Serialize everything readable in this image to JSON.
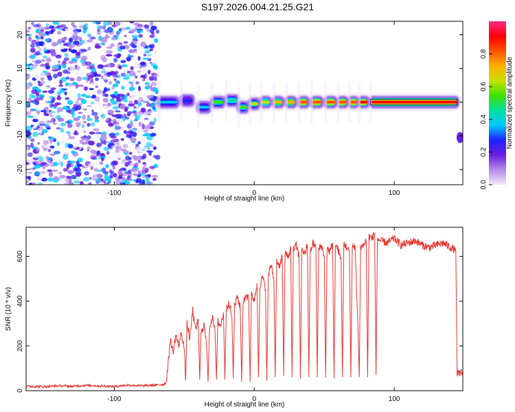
{
  "title": "S197.2026.004.21.25.G21",
  "chart_data": [
    {
      "type": "heatmap",
      "name": "spectrogram",
      "xlabel": "Height of straight line (km)",
      "ylabel": "Frequency (Hz)",
      "xlim": [
        -163,
        149
      ],
      "ylim": [
        -24.5,
        24
      ],
      "xticks": [
        -100,
        0,
        100
      ],
      "xtick_labels": [
        "-100",
        "0",
        "100"
      ],
      "yticks": [
        -20,
        -10,
        0,
        10,
        20
      ],
      "ytick_labels": [
        "-20",
        "-10",
        "0",
        "10",
        "20"
      ],
      "colorbar": {
        "label": "Normalized spectral amplitude",
        "range": [
          0,
          1
        ],
        "ticks": [
          0.0,
          0.2,
          0.4,
          0.6,
          0.8
        ],
        "tick_labels": [
          "0.0",
          "0.2",
          "0.4",
          "0.6",
          "0.8"
        ],
        "colors": [
          "#f2e8f8",
          "#b48ce8",
          "#6a1ee0",
          "#2020ff",
          "#00c8ff",
          "#00e0a0",
          "#40e000",
          "#c8e000",
          "#ffb000",
          "#ff5000",
          "#ff0000",
          "#ff2a8a"
        ]
      },
      "noise_region_x": [
        -163,
        -69
      ],
      "noise_level": [
        0.0,
        0.25
      ],
      "signal_segments": [
        {
          "x": [
            -68,
            -55
          ],
          "freq": 0.0,
          "amp": 0.45
        },
        {
          "x": [
            -52,
            -44
          ],
          "freq": 0.5,
          "amp": 0.35
        },
        {
          "x": [
            -40,
            -32
          ],
          "freq": -1.5,
          "amp": 0.38
        },
        {
          "x": [
            -30,
            -22
          ],
          "freq": 0.0,
          "amp": 0.55
        },
        {
          "x": [
            -20,
            -12
          ],
          "freq": 0.5,
          "amp": 0.5
        },
        {
          "x": [
            -11,
            -5
          ],
          "freq": -1.5,
          "amp": 0.6
        },
        {
          "x": [
            -3,
            3
          ],
          "freq": -0.5,
          "amp": 0.65
        },
        {
          "x": [
            5,
            11
          ],
          "freq": 0.0,
          "amp": 0.7
        },
        {
          "x": [
            14,
            20
          ],
          "freq": 0.0,
          "amp": 0.75
        },
        {
          "x": [
            23,
            29
          ],
          "freq": 0.0,
          "amp": 0.8
        },
        {
          "x": [
            32,
            38
          ],
          "freq": 0.0,
          "amp": 0.85
        },
        {
          "x": [
            41,
            48
          ],
          "freq": 0.0,
          "amp": 0.9
        },
        {
          "x": [
            51,
            58
          ],
          "freq": 0.0,
          "amp": 0.9
        },
        {
          "x": [
            60,
            66
          ],
          "freq": 0.0,
          "amp": 0.9
        },
        {
          "x": [
            68,
            74
          ],
          "freq": 0.0,
          "amp": 0.9
        },
        {
          "x": [
            75,
            81
          ],
          "freq": 0.0,
          "amp": 0.92
        },
        {
          "x": [
            83,
            145
          ],
          "freq": 0.0,
          "amp": 0.95
        }
      ],
      "offset_blob": {
        "x": [
          145,
          149
        ],
        "freq": -10.5,
        "amp": 0.25
      }
    },
    {
      "type": "line",
      "name": "snr",
      "xlabel": "Height of straight line (km)",
      "ylabel": "SNR (10 * v/v)",
      "xlim": [
        -163,
        149
      ],
      "ylim": [
        0,
        730
      ],
      "xticks": [
        -100,
        0,
        100
      ],
      "xtick_labels": [
        "-100",
        "0",
        "100"
      ],
      "yticks": [
        0,
        200,
        400,
        600
      ],
      "ytick_labels": [
        "0",
        "200",
        "400",
        "600"
      ],
      "color": "#e8302a",
      "x": [
        -163,
        -150,
        -140,
        -130,
        -120,
        -110,
        -100,
        -90,
        -80,
        -70,
        -65,
        -63,
        -61,
        -60,
        -58,
        -56,
        -54,
        -52,
        -50,
        -49,
        -48,
        -46,
        -44,
        -42,
        -40,
        -39,
        -38,
        -36,
        -34,
        -33,
        -32,
        -30,
        -28,
        -27,
        -26,
        -24,
        -22,
        -21,
        -20,
        -18,
        -16,
        -15,
        -14,
        -12,
        -10,
        -9,
        -8,
        -6,
        -4,
        -3,
        -2,
        0,
        2,
        3,
        4,
        6,
        8,
        9,
        10,
        12,
        14,
        15,
        16,
        18,
        20,
        21,
        22,
        24,
        26,
        27,
        28,
        30,
        32,
        33,
        34,
        36,
        38,
        39,
        40,
        42,
        44,
        45,
        46,
        48,
        50,
        51,
        52,
        54,
        56,
        57,
        58,
        60,
        62,
        63,
        64,
        66,
        68,
        69,
        70,
        72,
        74,
        75,
        76,
        78,
        80,
        81,
        82,
        84,
        86,
        87,
        88,
        90,
        95,
        100,
        105,
        110,
        115,
        120,
        125,
        130,
        135,
        140,
        143,
        144,
        145,
        146,
        147,
        148,
        149
      ],
      "y": [
        20,
        18,
        22,
        20,
        24,
        21,
        19,
        25,
        22,
        25,
        28,
        35,
        150,
        230,
        170,
        250,
        200,
        260,
        190,
        45,
        300,
        230,
        360,
        270,
        320,
        50,
        250,
        300,
        200,
        40,
        280,
        330,
        260,
        50,
        310,
        290,
        350,
        50,
        360,
        400,
        330,
        55,
        380,
        420,
        370,
        40,
        390,
        430,
        410,
        40,
        440,
        400,
        480,
        60,
        470,
        510,
        450,
        45,
        520,
        560,
        500,
        60,
        580,
        560,
        600,
        65,
        620,
        590,
        640,
        60,
        630,
        650,
        600,
        55,
        640,
        610,
        650,
        60,
        620,
        660,
        640,
        60,
        630,
        650,
        600,
        58,
        640,
        620,
        660,
        55,
        650,
        630,
        580,
        60,
        660,
        640,
        620,
        60,
        640,
        650,
        300,
        60,
        640,
        650,
        670,
        60,
        690,
        680,
        700,
        70,
        680,
        670,
        660,
        680,
        650,
        660,
        670,
        650,
        640,
        650,
        660,
        640,
        630,
        620,
        80,
        75,
        70,
        90,
        70
      ]
    }
  ]
}
